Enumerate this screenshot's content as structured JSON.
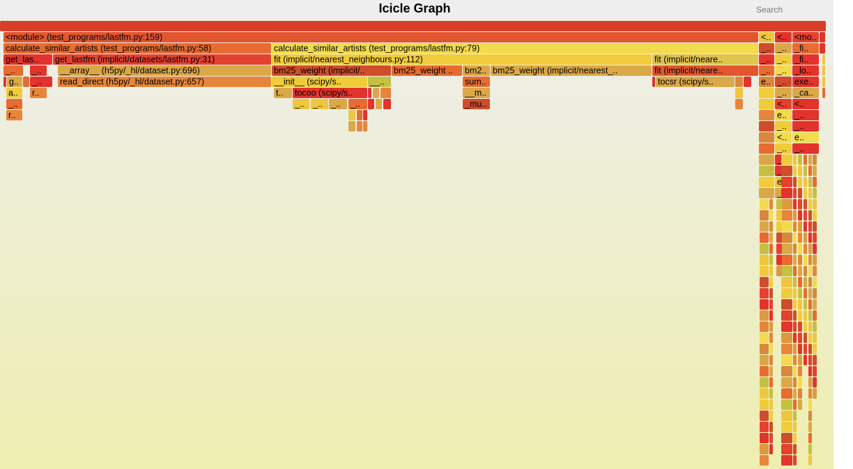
{
  "header": {
    "title": "Icicle Graph",
    "search_label": "Search"
  },
  "chart_data": {
    "type": "icicle",
    "title": "Icicle Graph",
    "palette": [
      "#e4412f",
      "#e86b30",
      "#dc9a3f",
      "#eec63f",
      "#f2db4d",
      "#cf4d2c",
      "#dba848",
      "#e2332c",
      "#c5c042",
      "#e7853a",
      "#f1cc3a",
      "#d9883e"
    ],
    "frames": [
      {
        "d": 0,
        "s": 0,
        "e": 1185,
        "t": "",
        "c": "#d83f2a"
      },
      {
        "d": 1,
        "s": 5,
        "e": 1088,
        "t": "<module> (test_programs/lastfm.py:159)",
        "c": "#e2562f"
      },
      {
        "d": 1,
        "s": 1089,
        "e": 1111,
        "t": "<..",
        "c": "#eec63f"
      },
      {
        "d": 1,
        "s": 1112,
        "e": 1136,
        "t": "<..",
        "c": "#e2332c"
      },
      {
        "d": 1,
        "s": 1137,
        "e": 1175,
        "t": "<mo..",
        "c": "#e4412f"
      },
      {
        "d": 1,
        "s": 1176,
        "e": 1184,
        "t": "",
        "c": "#e2332c"
      },
      {
        "d": 2,
        "s": 5,
        "e": 389,
        "t": "calculate_similar_artists (test_programs/lastfm.py:58)",
        "c": "#e86b30"
      },
      {
        "d": 2,
        "s": 390,
        "e": 1088,
        "t": "calculate_similar_artists (test_programs/lastfm.py:79)",
        "c": "#f2db4d"
      },
      {
        "d": 2,
        "s": 1089,
        "e": 1111,
        "t": "_..",
        "c": "#cf4d2c"
      },
      {
        "d": 2,
        "s": 1112,
        "e": 1136,
        "t": "_..",
        "c": "#dba848"
      },
      {
        "d": 2,
        "s": 1137,
        "e": 1175,
        "t": "_fi..",
        "c": "#e86b30"
      },
      {
        "d": 2,
        "s": 1176,
        "e": 1184,
        "t": "",
        "c": "#e2332c"
      },
      {
        "d": 3,
        "s": 5,
        "e": 75,
        "t": "get_las..",
        "c": "#e2332c"
      },
      {
        "d": 3,
        "s": 76,
        "e": 389,
        "t": "get_lastfm (implicit/datasets/lastfm.py:31)",
        "c": "#e4412f"
      },
      {
        "d": 3,
        "s": 390,
        "e": 935,
        "t": "fit (implicit/nearest_neighbours.py:112)",
        "c": "#f1cc3a"
      },
      {
        "d": 3,
        "s": 936,
        "e": 1088,
        "t": "fit (implicit/neare..",
        "c": "#e1c44a"
      },
      {
        "d": 3,
        "s": 1089,
        "e": 1111,
        "t": "_..",
        "c": "#e2332c"
      },
      {
        "d": 3,
        "s": 1112,
        "e": 1136,
        "t": "_..",
        "c": "#f1cc3a"
      },
      {
        "d": 3,
        "s": 1137,
        "e": 1175,
        "t": "_fi..",
        "c": "#e2332c"
      },
      {
        "d": 3,
        "s": 1180,
        "e": 1184,
        "t": "",
        "c": "#eec63f"
      },
      {
        "d": 4,
        "s": 5,
        "e": 33,
        "t": "_..",
        "c": "#e86b30"
      },
      {
        "d": 4,
        "s": 43,
        "e": 67,
        "t": "_..",
        "c": "#e2332c"
      },
      {
        "d": 4,
        "s": 83,
        "e": 389,
        "t": "__array__ (h5py/_hl/dataset.py:696)",
        "c": "#dba848"
      },
      {
        "d": 4,
        "s": 390,
        "e": 561,
        "t": "bm25_weight (implicit/..",
        "c": "#cf4d2c"
      },
      {
        "d": 4,
        "s": 562,
        "e": 663,
        "t": "bm25_weight ..",
        "c": "#e86b30"
      },
      {
        "d": 4,
        "s": 664,
        "e": 703,
        "t": "bm2..",
        "c": "#dba848"
      },
      {
        "d": 4,
        "s": 704,
        "e": 935,
        "t": "bm25_weight (implicit/nearest_..",
        "c": "#dba848"
      },
      {
        "d": 4,
        "s": 936,
        "e": 1088,
        "t": "fit (implicit/neare..",
        "c": "#e2562f"
      },
      {
        "d": 4,
        "s": 1089,
        "e": 1111,
        "t": "_..",
        "c": "#e86b30"
      },
      {
        "d": 4,
        "s": 1112,
        "e": 1136,
        "t": "_..",
        "c": "#f2db4d"
      },
      {
        "d": 4,
        "s": 1137,
        "e": 1175,
        "t": "_lo..",
        "c": "#e2332c"
      },
      {
        "d": 4,
        "s": 1180,
        "e": 1184,
        "t": "",
        "c": "#eec63f"
      },
      {
        "d": 5,
        "s": 5,
        "e": 9,
        "t": "",
        "c": "#e2332c"
      },
      {
        "d": 5,
        "s": 10,
        "e": 32,
        "t": "g..",
        "c": "#dba848"
      },
      {
        "d": 5,
        "s": 33,
        "e": 42,
        "t": "",
        "c": "#e86b30"
      },
      {
        "d": 5,
        "s": 43,
        "e": 75,
        "t": "_..",
        "c": "#e2332c"
      },
      {
        "d": 5,
        "s": 83,
        "e": 389,
        "t": "read_direct (h5py/_hl/dataset.py:657)",
        "c": "#e7853a"
      },
      {
        "d": 5,
        "s": 390,
        "e": 527,
        "t": "__init__ (scipy/s..",
        "c": "#f1cc3a"
      },
      {
        "d": 5,
        "s": 528,
        "e": 561,
        "t": "__..",
        "c": "#c5c042"
      },
      {
        "d": 5,
        "s": 664,
        "e": 703,
        "t": "sum..",
        "c": "#e86b30"
      },
      {
        "d": 5,
        "s": 936,
        "e": 940,
        "t": "",
        "c": "#e2332c"
      },
      {
        "d": 5,
        "s": 941,
        "e": 1054,
        "t": "tocsr (scipy/s..",
        "c": "#dba848"
      },
      {
        "d": 5,
        "s": 1055,
        "e": 1066,
        "t": "",
        "c": "#d9883e"
      },
      {
        "d": 5,
        "s": 1067,
        "e": 1078,
        "t": "",
        "c": "#e2332c"
      },
      {
        "d": 5,
        "s": 1089,
        "e": 1111,
        "t": "e..",
        "c": "#d9883e"
      },
      {
        "d": 5,
        "s": 1112,
        "e": 1136,
        "t": "_..",
        "c": "#cf4d2c"
      },
      {
        "d": 5,
        "s": 1137,
        "e": 1175,
        "t": "exe..",
        "c": "#e2332c"
      },
      {
        "d": 5,
        "s": 1180,
        "e": 1184,
        "t": "",
        "c": "#eec63f"
      },
      {
        "d": 6,
        "s": 9,
        "e": 32,
        "t": "a..",
        "c": "#f1cc3a"
      },
      {
        "d": 6,
        "s": 43,
        "e": 67,
        "t": "r..",
        "c": "#e7853a"
      },
      {
        "d": 6,
        "s": 393,
        "e": 419,
        "t": "t..",
        "c": "#dba848"
      },
      {
        "d": 6,
        "s": 420,
        "e": 527,
        "t": "tocoo (scipy/s..",
        "c": "#e2332c"
      },
      {
        "d": 6,
        "s": 528,
        "e": 533,
        "t": "",
        "c": "#e2332c"
      },
      {
        "d": 6,
        "s": 535,
        "e": 544,
        "t": "",
        "c": "#dba848"
      },
      {
        "d": 6,
        "s": 546,
        "e": 561,
        "t": "",
        "c": "#e7853a"
      },
      {
        "d": 6,
        "s": 664,
        "e": 703,
        "t": "__m..",
        "c": "#dba848"
      },
      {
        "d": 6,
        "s": 1055,
        "e": 1066,
        "t": "",
        "c": "#eec63f"
      },
      {
        "d": 6,
        "s": 1089,
        "e": 1111,
        "t": "",
        "c": "#f1cc3a"
      },
      {
        "d": 6,
        "s": 1112,
        "e": 1136,
        "t": "_..",
        "c": "#dba848"
      },
      {
        "d": 6,
        "s": 1137,
        "e": 1175,
        "t": "_ca..",
        "c": "#dba848"
      },
      {
        "d": 6,
        "s": 1180,
        "e": 1184,
        "t": "",
        "c": "#e86b30"
      },
      {
        "d": 7,
        "s": 9,
        "e": 32,
        "t": "_..",
        "c": "#e86b30"
      },
      {
        "d": 7,
        "s": 420,
        "e": 444,
        "t": "_..",
        "c": "#eec63f"
      },
      {
        "d": 7,
        "s": 446,
        "e": 471,
        "t": "_..",
        "c": "#eec63f"
      },
      {
        "d": 7,
        "s": 472,
        "e": 498,
        "t": "_..",
        "c": "#dba848"
      },
      {
        "d": 7,
        "s": 500,
        "e": 527,
        "t": "_..",
        "c": "#e86b30"
      },
      {
        "d": 7,
        "s": 528,
        "e": 537,
        "t": "",
        "c": "#e2332c"
      },
      {
        "d": 7,
        "s": 539,
        "e": 548,
        "t": "",
        "c": "#dba848"
      },
      {
        "d": 7,
        "s": 550,
        "e": 561,
        "t": "",
        "c": "#e2332c"
      },
      {
        "d": 7,
        "s": 664,
        "e": 703,
        "t": "_mu..",
        "c": "#cf4d2c"
      },
      {
        "d": 7,
        "s": 1055,
        "e": 1066,
        "t": "",
        "c": "#e7853a"
      },
      {
        "d": 7,
        "s": 1089,
        "e": 1111,
        "t": "",
        "c": "#f1cc3a"
      },
      {
        "d": 7,
        "s": 1112,
        "e": 1136,
        "t": "<..",
        "c": "#e4412f"
      },
      {
        "d": 7,
        "s": 1137,
        "e": 1175,
        "t": "<..",
        "c": "#e2332c"
      },
      {
        "d": 8,
        "s": 9,
        "e": 32,
        "t": "r..",
        "c": "#e7853a"
      },
      {
        "d": 8,
        "s": 500,
        "e": 510,
        "t": "",
        "c": "#eec63f"
      },
      {
        "d": 8,
        "s": 512,
        "e": 520,
        "t": "",
        "c": "#e86b30"
      },
      {
        "d": 8,
        "s": 521,
        "e": 527,
        "t": "",
        "c": "#e2332c"
      },
      {
        "d": 8,
        "s": 1089,
        "e": 1111,
        "t": "",
        "c": "#e7853a"
      },
      {
        "d": 8,
        "s": 1112,
        "e": 1136,
        "t": "e..",
        "c": "#f2db4d"
      },
      {
        "d": 8,
        "s": 1137,
        "e": 1175,
        "t": "_..",
        "c": "#e2332c"
      },
      {
        "d": 9,
        "s": 500,
        "e": 510,
        "t": "",
        "c": "#dba848"
      },
      {
        "d": 9,
        "s": 512,
        "e": 520,
        "t": "",
        "c": "#e7853a"
      },
      {
        "d": 9,
        "s": 521,
        "e": 527,
        "t": "",
        "c": "#e7853a"
      },
      {
        "d": 9,
        "s": 1089,
        "e": 1111,
        "t": "",
        "c": "#cf4d2c"
      },
      {
        "d": 9,
        "s": 1112,
        "e": 1136,
        "t": "_..",
        "c": "#f1cc3a"
      },
      {
        "d": 9,
        "s": 1137,
        "e": 1175,
        "t": "_..",
        "c": "#e2332c"
      },
      {
        "d": 10,
        "s": 1089,
        "e": 1111,
        "t": "",
        "c": "#d9883e"
      },
      {
        "d": 10,
        "s": 1112,
        "e": 1136,
        "t": "<..",
        "c": "#f2db4d"
      },
      {
        "d": 10,
        "s": 1137,
        "e": 1175,
        "t": "e..",
        "c": "#f2db4d"
      },
      {
        "d": 11,
        "s": 1089,
        "e": 1111,
        "t": "",
        "c": "#e86b30"
      },
      {
        "d": 11,
        "s": 1112,
        "e": 1136,
        "t": "_..",
        "c": "#f1cc3a"
      },
      {
        "d": 11,
        "s": 1137,
        "e": 1175,
        "t": "_..",
        "c": "#e2332c"
      },
      {
        "d": 12,
        "s": 1089,
        "e": 1111,
        "t": "",
        "c": "#dba848"
      },
      {
        "d": 12,
        "s": 1112,
        "e": 1136,
        "t": "_..",
        "c": "#e2332c"
      },
      {
        "d": 13,
        "s": 1089,
        "e": 1111,
        "t": "",
        "c": "#c5c042"
      },
      {
        "d": 13,
        "s": 1112,
        "e": 1136,
        "t": "_..",
        "c": "#e2332c"
      },
      {
        "d": 14,
        "s": 1089,
        "e": 1111,
        "t": "",
        "c": "#f1cc3a"
      },
      {
        "d": 14,
        "s": 1112,
        "e": 1136,
        "t": "e..",
        "c": "#eec63f"
      },
      {
        "d": 15,
        "s": 1089,
        "e": 1111,
        "t": "",
        "c": "#dba848"
      },
      {
        "d": 15,
        "s": 1112,
        "e": 1136,
        "t": "_..",
        "c": "#dba848"
      }
    ]
  }
}
